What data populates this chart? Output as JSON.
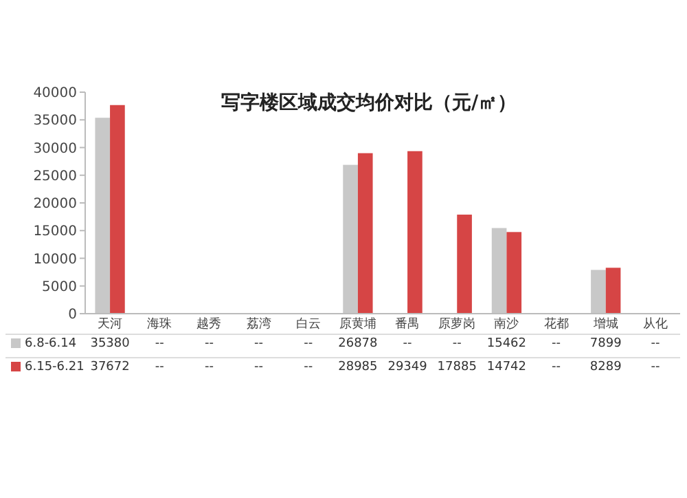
{
  "chart_data": {
    "type": "bar",
    "title": "写字楼区域成交均价对比（元/㎡）",
    "categories": [
      "天河",
      "海珠",
      "越秀",
      "荔湾",
      "白云",
      "原黄埔",
      "番禺",
      "原萝岗",
      "南沙",
      "花都",
      "增城",
      "从化"
    ],
    "series": [
      {
        "name": "6.8-6.14",
        "color": "#c8c8c8",
        "values": [
          35380,
          null,
          null,
          null,
          null,
          26878,
          null,
          null,
          15462,
          null,
          7899,
          null
        ],
        "value_labels": [
          "35380",
          "--",
          "--",
          "--",
          "--",
          "26878",
          "--",
          "--",
          "15462",
          "--",
          "7899",
          "--"
        ]
      },
      {
        "name": "6.15-6.21",
        "color": "#d64545",
        "values": [
          37672,
          null,
          null,
          null,
          null,
          28985,
          29349,
          17885,
          14742,
          null,
          8289,
          null
        ],
        "value_labels": [
          "37672",
          "--",
          "--",
          "--",
          "--",
          "28985",
          "29349",
          "17885",
          "14742",
          "--",
          "8289",
          "--"
        ]
      }
    ],
    "ylim": [
      0,
      40000
    ],
    "yticks": [
      0,
      5000,
      10000,
      15000,
      20000,
      25000,
      30000,
      35000,
      40000
    ],
    "legend": "bottom"
  }
}
